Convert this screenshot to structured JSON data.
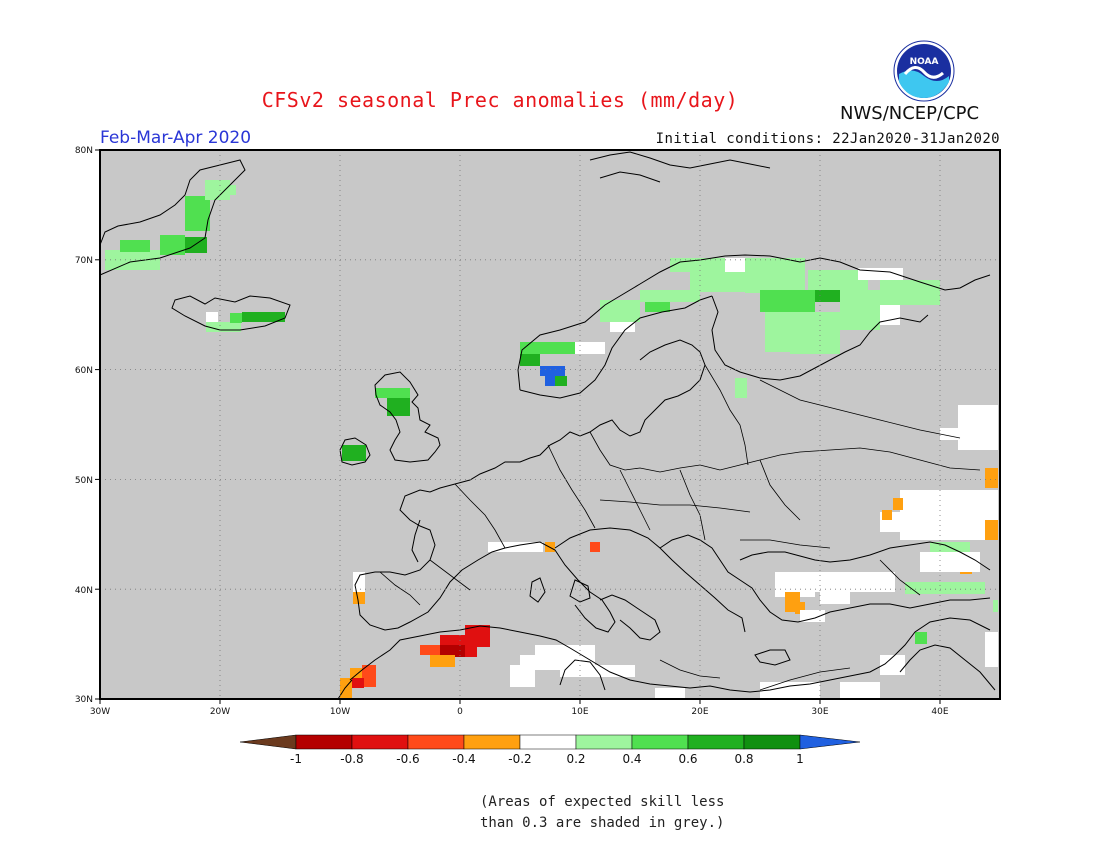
{
  "header": {
    "title": "CFSv2 seasonal Prec anomalies (mm/day)",
    "period": "Feb-Mar-Apr 2020",
    "initial_conditions": "Initial conditions: 22Jan2020-31Jan2020",
    "agency": "NWS/NCEP/CPC",
    "logo_text": "NOAA"
  },
  "map": {
    "lat_labels": [
      "80N",
      "70N",
      "60N",
      "50N",
      "40N",
      "30N"
    ],
    "lon_labels": [
      "30W",
      "20W",
      "10W",
      "0",
      "10E",
      "20E",
      "30E",
      "40E"
    ],
    "background_color": "#c8c8c8",
    "coastline_color": "#000000"
  },
  "legend": {
    "labels": [
      "-1",
      "-0.8",
      "-0.6",
      "-0.4",
      "-0.2",
      "0.2",
      "0.4",
      "0.6",
      "0.8",
      "1"
    ],
    "colors": {
      "below_minus_1": "#6b3a1e",
      "minus_1_to_minus_0_8": "#b40000",
      "minus_0_8_to_minus_0_6": "#e01010",
      "minus_0_6_to_minus_0_4": "#ff4a1a",
      "minus_0_4_to_minus_0_2": "#ffa010",
      "minus_0_2_to_0_2": "#ffffff",
      "0_2_to_0_4": "#9ef59e",
      "0_4_to_0_6": "#50e050",
      "0_6_to_0_8": "#20b020",
      "0_8_to_1": "#109010",
      "above_1": "#2060e0"
    }
  },
  "footnote": {
    "line1": "(Areas of expected skill less",
    "line2": "than 0.3 are shaded in grey.)"
  }
}
